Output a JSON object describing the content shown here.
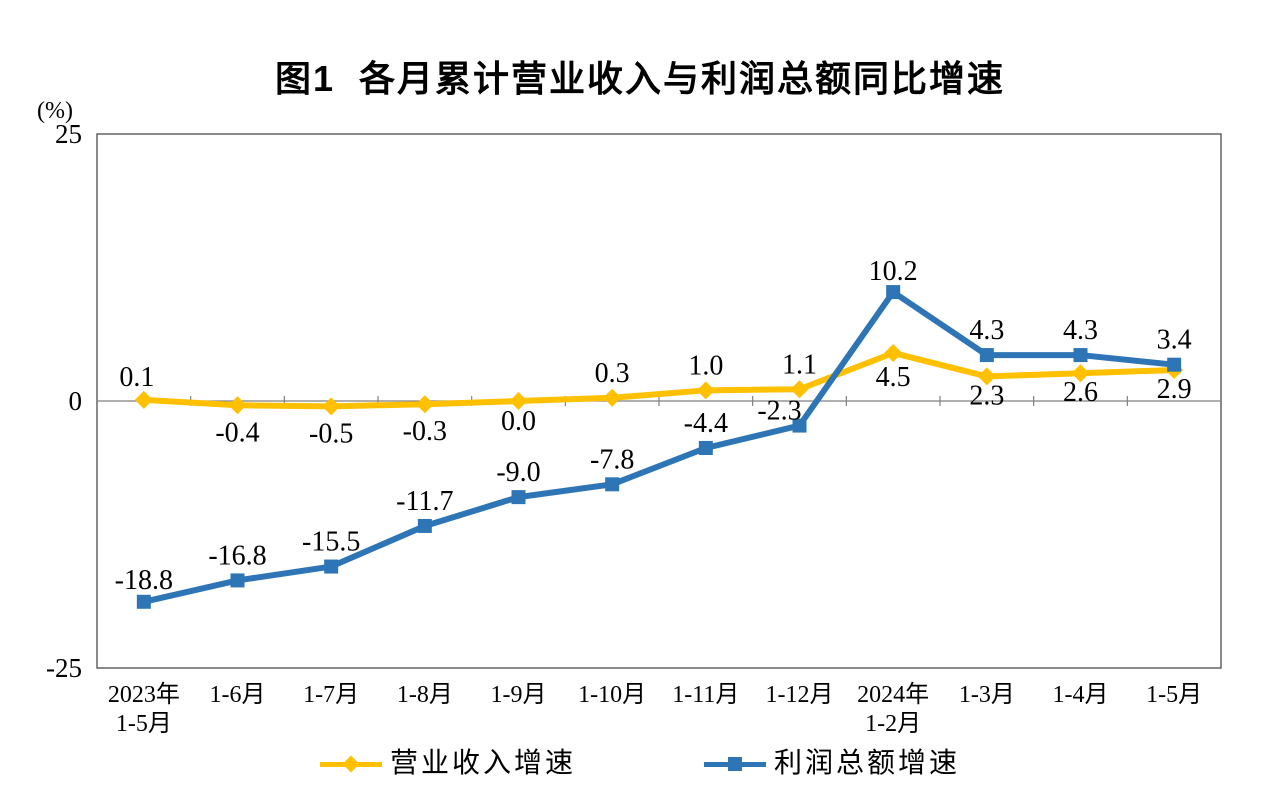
{
  "chart_data": {
    "type": "line",
    "title": "图1  各月累计营业收入与利润总额同比增速",
    "ylabel": "(%)",
    "categories": [
      [
        "2023年",
        "1-5月"
      ],
      [
        "1-6月"
      ],
      [
        "1-7月"
      ],
      [
        "1-8月"
      ],
      [
        "1-9月"
      ],
      [
        "1-10月"
      ],
      [
        "1-11月"
      ],
      [
        "1-12月"
      ],
      [
        "2024年",
        "1-2月"
      ],
      [
        "1-3月"
      ],
      [
        "1-4月"
      ],
      [
        "1-5月"
      ]
    ],
    "series": [
      {
        "name": "营业收入增速",
        "color": "#FFC000",
        "marker": "diamond",
        "values": [
          0.1,
          -0.4,
          -0.5,
          -0.3,
          0.0,
          0.3,
          1.0,
          1.1,
          4.5,
          2.3,
          2.6,
          2.9
        ],
        "label_positions": [
          "above",
          "below",
          "below",
          "below",
          "below",
          "above",
          "above",
          "above",
          "below",
          "below",
          "below",
          "below"
        ]
      },
      {
        "name": "利润总额增速",
        "color": "#2E75B6",
        "marker": "square",
        "values": [
          -18.8,
          -16.8,
          -15.5,
          -11.7,
          -9.0,
          -7.8,
          -4.4,
          -2.3,
          10.2,
          4.3,
          4.3,
          3.4
        ],
        "label_positions": [
          "above",
          "above",
          "above",
          "above",
          "above",
          "above",
          "above",
          "above",
          "above",
          "above",
          "above",
          "above"
        ]
      }
    ],
    "ylim": [
      -25,
      25
    ],
    "yticks": [
      25,
      0,
      -25
    ],
    "grid": false,
    "legend_position": "bottom",
    "axis_color": "#595959",
    "tick_color": "#808080",
    "label_color": "#000000",
    "background": "#ffffff"
  }
}
